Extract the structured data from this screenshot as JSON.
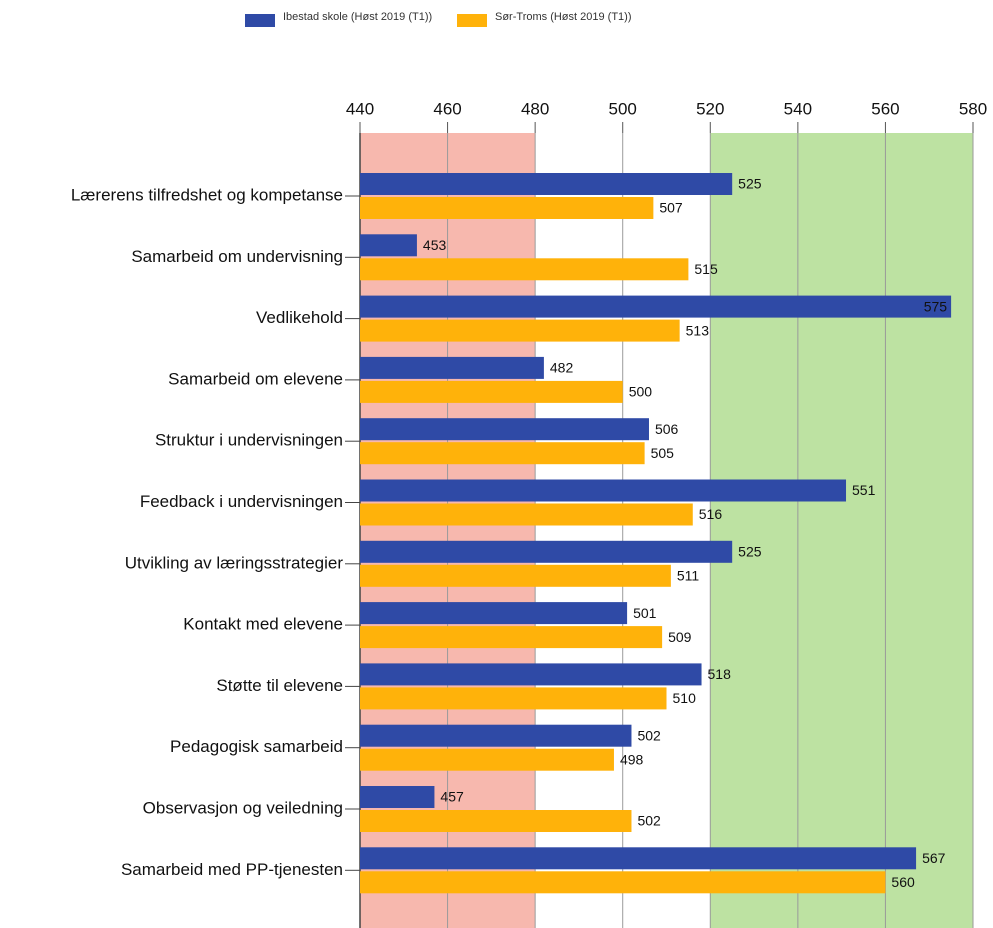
{
  "chart_data": {
    "type": "barh",
    "categories": [
      "Lærerens tilfredshet og kompetanse",
      "Samarbeid om undervisning",
      "Vedlikehold",
      "Samarbeid om elevene",
      "Struktur i undervisningen",
      "Feedback i undervisningen",
      "Utvikling av læringsstrategier",
      "Kontakt med elevene",
      "Støtte til elevene",
      "Pedagogisk samarbeid",
      "Observasjon og veiledning",
      "Samarbeid med PP-tjenesten"
    ],
    "series": [
      {
        "name": "Ibestad skole (Høst 2019 (T1))",
        "color": "#2f4aa6",
        "values": [
          525,
          453,
          575,
          482,
          506,
          551,
          525,
          501,
          518,
          502,
          457,
          567
        ]
      },
      {
        "name": "Sør-Troms (Høst 2019 (T1))",
        "color": "#ffb20a",
        "values": [
          507,
          515,
          513,
          500,
          505,
          516,
          511,
          509,
          510,
          498,
          502,
          560
        ]
      }
    ],
    "xlim": [
      440,
      580
    ],
    "xticks": [
      440,
      460,
      480,
      500,
      520,
      540,
      560,
      580
    ],
    "bands": [
      {
        "from": 440,
        "to": 480,
        "color": "#f7b8ae"
      },
      {
        "from": 520,
        "to": 580,
        "color": "#bde2a2"
      }
    ],
    "grid": true
  }
}
